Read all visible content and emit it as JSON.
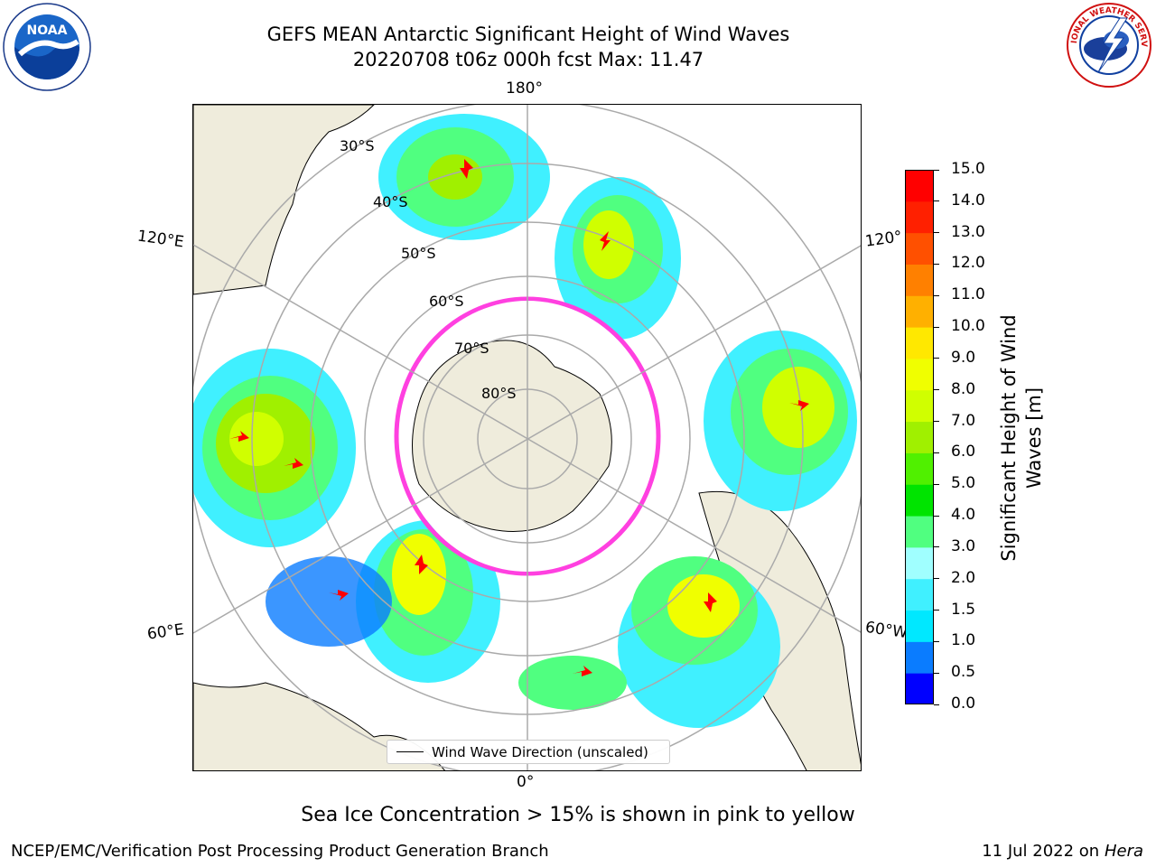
{
  "header": {
    "title_line1": "GEFS MEAN Antarctic Significant Height of Wind Waves",
    "title_line2": "20220708 t06z 000h fcst   Max: 11.47"
  },
  "logos": {
    "left": {
      "icon": "noaa-logo-icon",
      "text": "NOAA"
    },
    "right": {
      "icon": "national-weather-service-logo-icon",
      "text": "NATIONAL WEATHER SERVICE"
    }
  },
  "map": {
    "projection": "south-polar-stereographic",
    "longitude_labels": {
      "top": "180°",
      "bottom": "0°",
      "left_upper": "120°E",
      "left_lower": "60°E",
      "right_upper": "120°",
      "right_lower": "60°W"
    },
    "latitude_labels": [
      "30°S",
      "40°S",
      "50°S",
      "60°S",
      "70°S",
      "80°S"
    ],
    "legend": {
      "label": "Wind Wave Direction (unscaled)"
    },
    "colors": {
      "land": "#efecdc",
      "ocean_no_data": "#ffffff",
      "arrows": "#ff0000",
      "ice_edge": "#ff40e0"
    }
  },
  "colorbar": {
    "label": "Significant Height of Wind Waves [m]",
    "ticks": [
      "0.0",
      "0.5",
      "1.0",
      "1.5",
      "2.0",
      "3.0",
      "4.0",
      "5.0",
      "6.0",
      "7.0",
      "8.0",
      "9.0",
      "10.0",
      "11.0",
      "12.0",
      "13.0",
      "14.0",
      "15.0"
    ],
    "colors": [
      "#0000ff",
      "#0a7cff",
      "#00e8ff",
      "#40f0ff",
      "#a0ffff",
      "#50ff80",
      "#00e400",
      "#50f000",
      "#a0f000",
      "#d0ff00",
      "#f0ff00",
      "#ffe800",
      "#ffb000",
      "#ff8000",
      "#ff5000",
      "#ff2000",
      "#ff0000"
    ]
  },
  "footer": {
    "caption": "Sea Ice Concentration > 15% is shown in pink to yellow",
    "left": "NCEP/EMC/Verification Post Processing Product Generation Branch",
    "right_date": "11 Jul 2022 on",
    "right_host": "Hera"
  }
}
